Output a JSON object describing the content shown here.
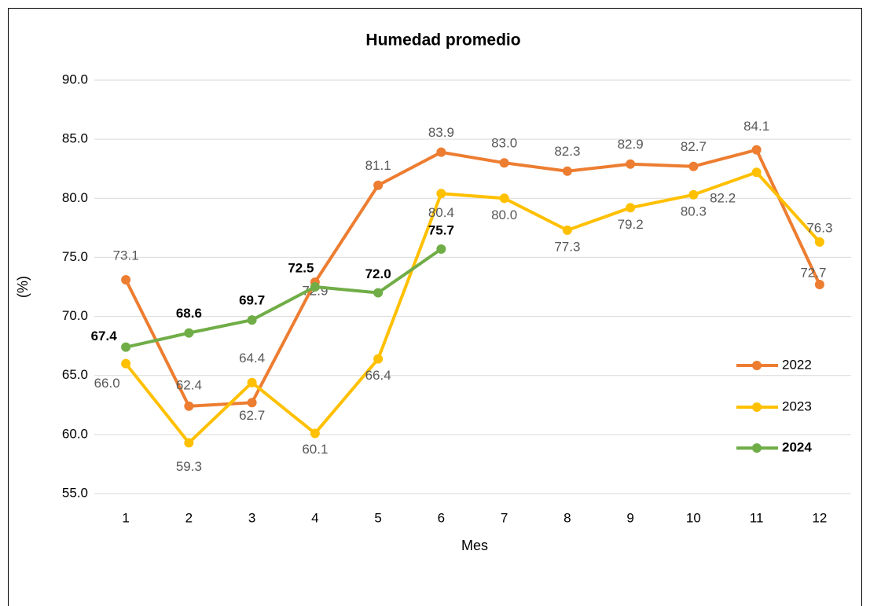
{
  "chart_data": {
    "type": "line",
    "title": "Humedad promedio",
    "x_label": "Mes",
    "y_label": "(%)",
    "categories": [
      1,
      2,
      3,
      4,
      5,
      6,
      7,
      8,
      9,
      10,
      11,
      12
    ],
    "series": [
      {
        "name": "2022",
        "color": "#ed7d31",
        "values": [
          73.1,
          62.4,
          62.7,
          72.9,
          81.1,
          83.9,
          83,
          82.3,
          82.9,
          82.7,
          84.1,
          72.7
        ],
        "value_labels": [
          "73.1",
          "62.4",
          "62.7",
          "72.9",
          "81.1",
          "83.9",
          "83.0",
          "82.3",
          "82.9",
          "82.7",
          "84.1",
          "72.7"
        ]
      },
      {
        "name": "2023",
        "color": "#ffc000",
        "values": [
          66,
          59.3,
          64.4,
          60.1,
          66.4,
          80.4,
          80,
          77.3,
          79.2,
          80.3,
          82.2,
          76.3
        ],
        "value_labels": [
          "66.0",
          "59.3",
          "64.4",
          "60.1",
          "66.4",
          "80.4",
          "80.0",
          "77.3",
          "79.2",
          "80.3",
          "82.2",
          "76.3"
        ]
      },
      {
        "name": "2024",
        "color": "#70ad47",
        "values": [
          67.4,
          68.6,
          69.7,
          72.5,
          72,
          75.7,
          null,
          null,
          null,
          null,
          null,
          null
        ],
        "value_labels": [
          "67.4",
          "68.6",
          "69.7",
          "72.5",
          "72.0",
          "75.7",
          null,
          null,
          null,
          null,
          null,
          null
        ]
      }
    ],
    "ylim": [
      55,
      90
    ],
    "yticks": [
      {
        "value": 55,
        "label": "55.0"
      },
      {
        "value": 60,
        "label": "60.0"
      },
      {
        "value": 65,
        "label": "65.0"
      },
      {
        "value": 70,
        "label": "70.0"
      },
      {
        "value": 75,
        "label": "75.0"
      },
      {
        "value": 80,
        "label": "80.0"
      },
      {
        "value": 85,
        "label": "85.0"
      },
      {
        "value": 90,
        "label": "90.0"
      }
    ],
    "grid": true,
    "legend": "right"
  }
}
